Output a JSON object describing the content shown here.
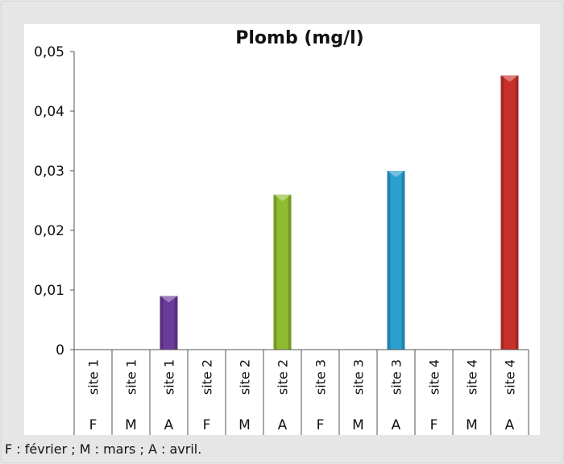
{
  "colors": {
    "frame_bg": "#e6e6e6",
    "frame_border": "#c9c9c9",
    "plot_bg": "#ffffff",
    "axis": "#555555",
    "bar_site1": "#6b3a9a",
    "bar_site2": "#8fbc2e",
    "bar_site3": "#2b9fd0",
    "bar_site4": "#c9302c"
  },
  "footnote": "F : février ; M : mars ; A : avril.",
  "chart_data": {
    "type": "bar",
    "title": "Plomb (mg/l)",
    "xlabel": "",
    "ylabel": "",
    "ylim": [
      0,
      0.05
    ],
    "yticks": [
      "0",
      "0,01",
      "0,02",
      "0,03",
      "0,04",
      "0,05"
    ],
    "categories": [
      {
        "site": "site 1",
        "month": "F",
        "value": 0,
        "color": "#6b3a9a"
      },
      {
        "site": "site 1",
        "month": "M",
        "value": 0,
        "color": "#6b3a9a"
      },
      {
        "site": "site 1",
        "month": "A",
        "value": 0.009,
        "color": "#6b3a9a"
      },
      {
        "site": "site 2",
        "month": "F",
        "value": 0,
        "color": "#8fbc2e"
      },
      {
        "site": "site 2",
        "month": "M",
        "value": 0,
        "color": "#8fbc2e"
      },
      {
        "site": "site 2",
        "month": "A",
        "value": 0.026,
        "color": "#8fbc2e"
      },
      {
        "site": "site 3",
        "month": "F",
        "value": 0,
        "color": "#2b9fd0"
      },
      {
        "site": "site 3",
        "month": "M",
        "value": 0,
        "color": "#2b9fd0"
      },
      {
        "site": "site 3",
        "month": "A",
        "value": 0.03,
        "color": "#2b9fd0"
      },
      {
        "site": "site 4",
        "month": "F",
        "value": 0,
        "color": "#c9302c"
      },
      {
        "site": "site 4",
        "month": "M",
        "value": 0,
        "color": "#c9302c"
      },
      {
        "site": "site 4",
        "month": "A",
        "value": 0.046,
        "color": "#c9302c"
      }
    ],
    "grid": false,
    "legend": "none"
  }
}
